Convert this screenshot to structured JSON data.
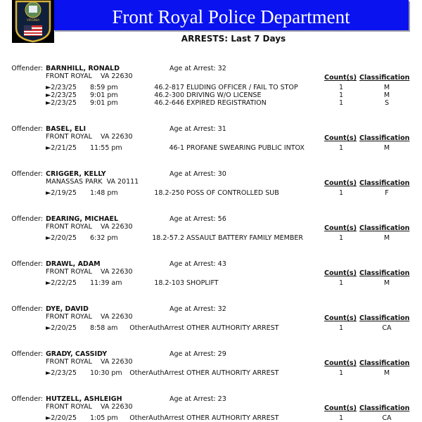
{
  "header": {
    "title": "Front Royal Police Department",
    "subtitle": "ARRESTS:  Last 7 Days",
    "banner_color": "#0a12f0"
  },
  "labels": {
    "offender": "Offender:",
    "age_prefix": "Age at Arrest:",
    "counts": "Count(s)",
    "classification": "Classification"
  },
  "offenders": [
    {
      "name": "BARNHILL, RONALD",
      "address": "FRONT ROYAL    VA 22630",
      "age": "32",
      "charges": [
        {
          "date": "►2/23/25",
          "time": "8:59 pm",
          "statute": "46.2-817",
          "description": "ELUDING OFFICER / FAIL TO STOP",
          "count": "1",
          "class": "M"
        },
        {
          "date": "►2/23/25",
          "time": "9:01 pm",
          "statute": "46.2-300",
          "description": "DRIVING W/O LICENSE",
          "count": "1",
          "class": "M"
        },
        {
          "date": "►2/23/25",
          "time": "9:01 pm",
          "statute": "46.2-646",
          "description": "EXPIRED REGISTRATION",
          "count": "1",
          "class": "S"
        }
      ]
    },
    {
      "name": "BASEL, ELI",
      "address": "FRONT ROYAL    VA 22630",
      "age": "31",
      "charges": [
        {
          "date": "►2/21/25",
          "time": "11:55 pm",
          "statute": "46-1",
          "description": "PROFANE SWEARING PUBLIC INTOX",
          "count": "1",
          "class": "M"
        }
      ]
    },
    {
      "name": "CRIGGER, KELLY",
      "address": "MANASSAS PARK  VA 20111",
      "age": "30",
      "charges": [
        {
          "date": "►2/19/25",
          "time": "1:48 pm",
          "statute": "18.2-250",
          "description": "POSS OF CONTROLLED SUB",
          "count": "1",
          "class": "F"
        }
      ]
    },
    {
      "name": "DEARING, MICHAEL",
      "address": "FRONT ROYAL    VA 22630",
      "age": "56",
      "charges": [
        {
          "date": "►2/20/25",
          "time": "6:32 pm",
          "statute": "18.2-57.2",
          "description": "ASSAULT BATTERY FAMILY MEMBER",
          "count": "1",
          "class": "M"
        }
      ]
    },
    {
      "name": "DRAWL, ADAM",
      "address": "FRONT ROYAL    VA 22630",
      "age": "43",
      "charges": [
        {
          "date": "►2/22/25",
          "time": "11:39 am",
          "statute": "18.2-103",
          "description": "SHOPLIFT",
          "count": "1",
          "class": "M"
        }
      ]
    },
    {
      "name": "DYE, DAVID",
      "address": "FRONT ROYAL    VA 22630",
      "age": "32",
      "charges": [
        {
          "date": "►2/20/25",
          "time": "8:58 am",
          "statute": "OtherAuthArrest",
          "description": "OTHER AUTHORITY ARREST",
          "count": "1",
          "class": "CA"
        }
      ]
    },
    {
      "name": "GRADY, CASSIDY",
      "address": "FRONT ROYAL    VA 22630",
      "age": "29",
      "charges": [
        {
          "date": "►2/23/25",
          "time": "10:30 pm",
          "statute": "OtherAuthArrest",
          "description": "OTHER AUTHORITY ARREST",
          "count": "1",
          "class": "M"
        }
      ]
    },
    {
      "name": "HUTZELL, ASHLEIGH",
      "address": "FRONT ROYAL    VA 22630",
      "age": "23",
      "charges": [
        {
          "date": "►2/20/25",
          "time": "1:05 pm",
          "statute": "OtherAuthArrest",
          "description": "OTHER AUTHORITY ARREST",
          "count": "1",
          "class": "CA"
        }
      ]
    }
  ]
}
